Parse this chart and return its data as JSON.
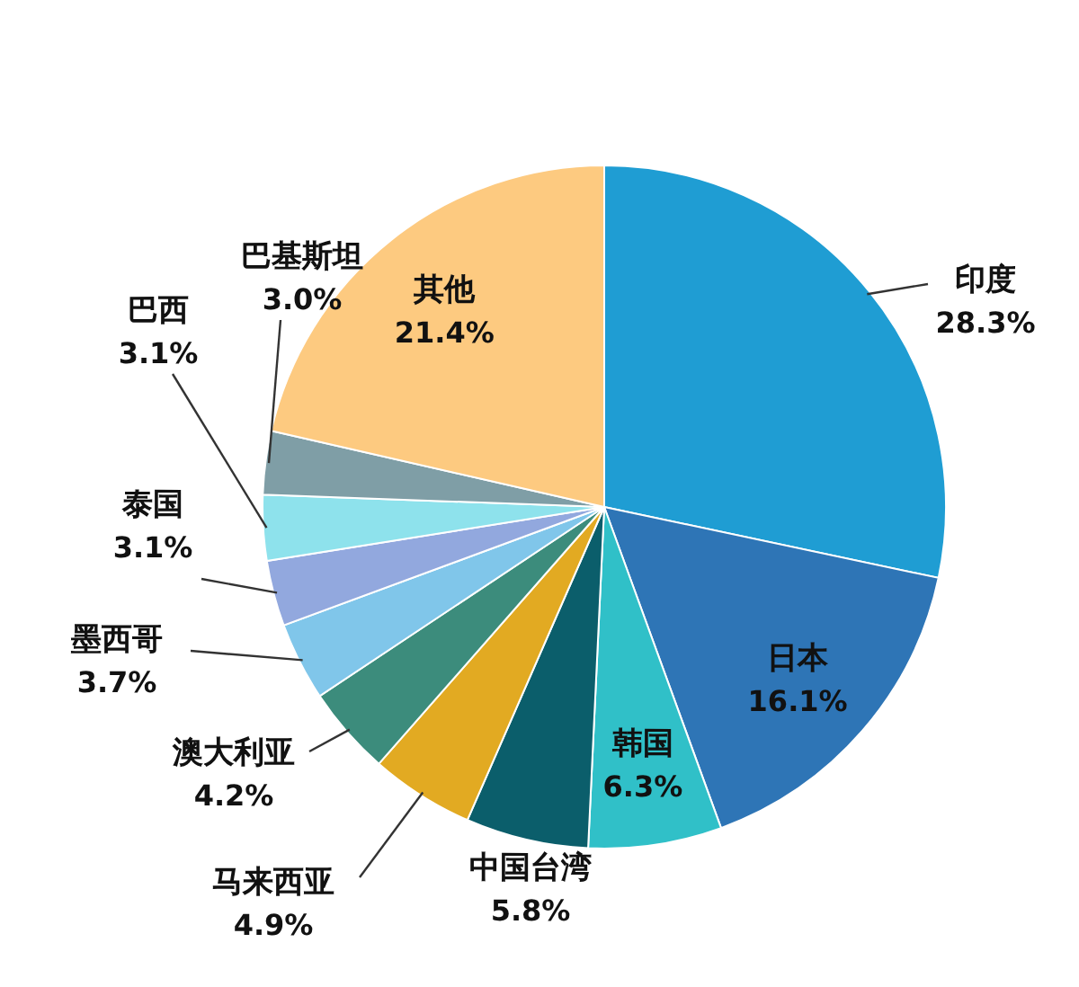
{
  "chart_data": {
    "type": "pie",
    "categories": [
      "印度",
      "日本",
      "韩国",
      "中国台湾",
      "马来西亚",
      "澳大利亚",
      "墨西哥",
      "泰国",
      "巴西",
      "巴基斯坦",
      "其他"
    ],
    "values": [
      28.3,
      16.1,
      6.3,
      5.8,
      4.9,
      4.2,
      3.7,
      3.1,
      3.1,
      3.0,
      21.4
    ],
    "value_labels": [
      "28.3%",
      "16.1%",
      "6.3%",
      "5.8%",
      "4.9%",
      "4.2%",
      "3.7%",
      "3.1%",
      "3.1%",
      "3.0%",
      "21.4%"
    ],
    "colors": [
      "#1f9dd3",
      "#2e75b6",
      "#30c0c8",
      "#0b5e6b",
      "#e2aa22",
      "#3c8c7c",
      "#80c6ea",
      "#92a8de",
      "#8ee2ec",
      "#7f9ea6",
      "#fdca80"
    ]
  }
}
